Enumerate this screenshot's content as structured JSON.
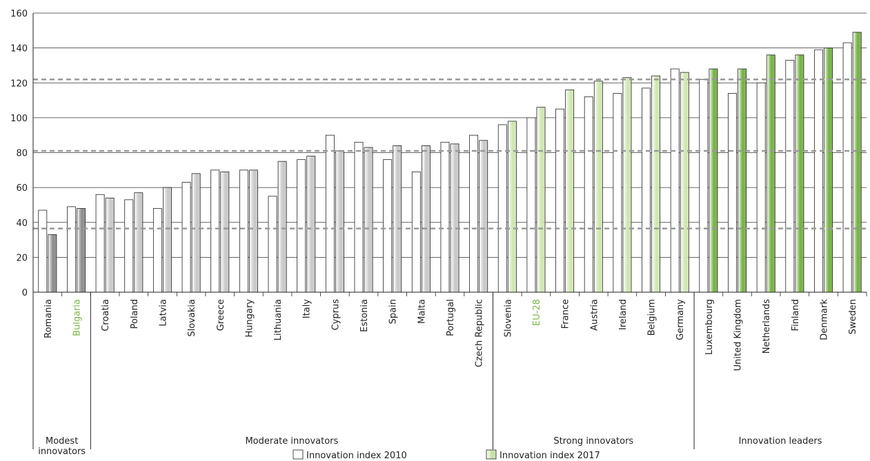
{
  "chart_data": {
    "type": "bar",
    "categories": [
      "Romania",
      "Bulgaria",
      "Croatia",
      "Poland",
      "Latvia",
      "Slovakia",
      "Greece",
      "Hungary",
      "Lithuania",
      "Italy",
      "Cyprus",
      "Estonia",
      "Spain",
      "Malta",
      "Portugal",
      "Czech Republic",
      "Slovenia",
      "EU-28",
      "France",
      "Austria",
      "Ireland",
      "Belgium",
      "Germany",
      "Luxembourg",
      "United Kingdom",
      "Netherlands",
      "Finland",
      "Denmark",
      "Sweden"
    ],
    "series": [
      {
        "name": "Innovation index 2010",
        "color": "#ffffff",
        "values": [
          47,
          49,
          56,
          53,
          48,
          63,
          70,
          70,
          55,
          76,
          90,
          86,
          76,
          69,
          86,
          90,
          96,
          100,
          105,
          112,
          114,
          117,
          128,
          122,
          114,
          120,
          133,
          139,
          143
        ]
      },
      {
        "name": "Innovation index 2017",
        "color": "#c5e0a5",
        "values": [
          33,
          48,
          54,
          57,
          60,
          68,
          69,
          70,
          75,
          78,
          81,
          83,
          84,
          84,
          85,
          87,
          98,
          106,
          116,
          121,
          123,
          124,
          126,
          128,
          128,
          136,
          136,
          140,
          149
        ]
      }
    ],
    "groups": [
      {
        "label": "Modest innovators",
        "count": 2,
        "color": "#8c8c8c"
      },
      {
        "label": "Moderate innovators",
        "count": 14,
        "color": "#c8c8c8"
      },
      {
        "label": "Strong innovators",
        "count": 7,
        "color": "#cfe6b0"
      },
      {
        "label": "Innovation leaders",
        "count": 6,
        "color": "#74b043"
      }
    ],
    "highlight": [
      1,
      17
    ],
    "highlight_color": "#7ab648",
    "reference_lines": [
      36.5,
      81,
      122
    ],
    "ylim": [
      0,
      160
    ],
    "yticks": [
      0,
      20,
      40,
      60,
      80,
      100,
      120,
      140,
      160
    ],
    "grid": true
  }
}
